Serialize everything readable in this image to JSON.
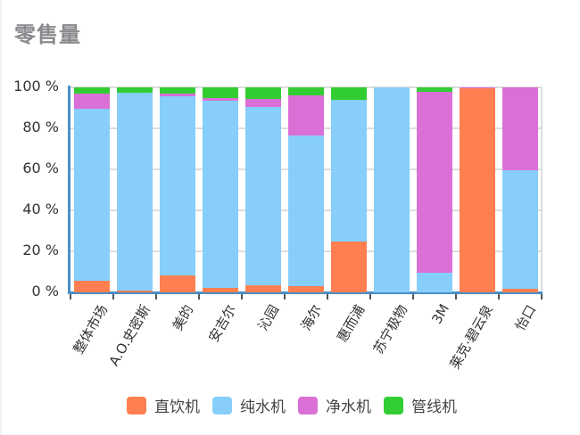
{
  "title": "零售量",
  "chart_data": {
    "type": "bar",
    "stacked": true,
    "normalized": true,
    "title": "零售量",
    "xlabel": "",
    "ylabel": "",
    "ylim": [
      0,
      100
    ],
    "yticks": [
      "0 %",
      "20 %",
      "40 %",
      "60 %",
      "80 %",
      "100 %"
    ],
    "categories": [
      "整体市场",
      "A.O.史密斯",
      "美的",
      "安吉尔",
      "沁园",
      "海尔",
      "惠而浦",
      "苏宁极物",
      "3M",
      "莱克·碧云泉",
      "怡口"
    ],
    "series": [
      {
        "name": "直饮机",
        "color": "#ff7f50",
        "values": [
          5.7,
          1.0,
          8.3,
          2.0,
          3.5,
          3.0,
          24.8,
          0,
          0,
          99.5,
          1.8
        ]
      },
      {
        "name": "纯水机",
        "color": "#87cefa",
        "values": [
          83.9,
          96.4,
          87.3,
          91.5,
          87.0,
          73.5,
          69.2,
          100,
          9.6,
          0,
          57.8
        ]
      },
      {
        "name": "净水机",
        "color": "#da70d6",
        "values": [
          7.4,
          0,
          1.4,
          1.2,
          4.0,
          19.5,
          0,
          0,
          88.2,
          0.5,
          40.4
        ]
      },
      {
        "name": "管线机",
        "color": "#32cd32",
        "values": [
          3.0,
          2.6,
          3.0,
          5.3,
          5.5,
          4.0,
          6.0,
          0,
          2.2,
          0,
          0
        ]
      }
    ],
    "grid": true,
    "legend_position": "bottom"
  }
}
